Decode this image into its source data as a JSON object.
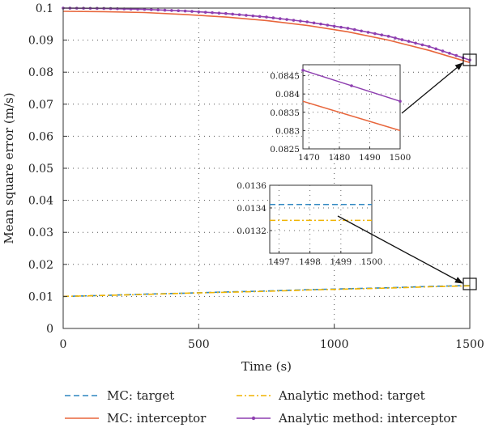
{
  "chart_data": {
    "type": "line",
    "xlabel": "Time (s)",
    "ylabel": "Mean square error (m/s)",
    "xlim": [
      0,
      1500
    ],
    "ylim": [
      0,
      0.1
    ],
    "xticks": [
      "0",
      "500",
      "1000",
      "1500"
    ],
    "yticks": [
      "0",
      "0.01",
      "0.02",
      "0.03",
      "0.04",
      "0.05",
      "0.06",
      "0.07",
      "0.08",
      "0.09",
      "0.1"
    ],
    "grid": "dotted",
    "legend_position": "bottom",
    "series": [
      {
        "name": "MC: target",
        "style": "dashed",
        "color": "#2e86c1",
        "x": [
          0,
          150,
          300,
          450,
          600,
          750,
          900,
          1050,
          1200,
          1350,
          1500
        ],
        "y": [
          0.01,
          0.0103,
          0.0107,
          0.011,
          0.0114,
          0.0117,
          0.0121,
          0.0124,
          0.0127,
          0.0131,
          0.0134
        ]
      },
      {
        "name": "MC: interceptor",
        "style": "solid",
        "color": "#e8663c",
        "x": [
          0,
          150,
          300,
          450,
          600,
          750,
          900,
          1050,
          1200,
          1350,
          1500
        ],
        "y": [
          0.099,
          0.0989,
          0.0986,
          0.098,
          0.0972,
          0.0961,
          0.0946,
          0.0926,
          0.09,
          0.0868,
          0.083
        ]
      },
      {
        "name": "Analytic method: target",
        "style": "dashdot",
        "color": "#f0b400",
        "x": [
          0,
          150,
          300,
          450,
          600,
          750,
          900,
          1050,
          1200,
          1350,
          1500
        ],
        "y": [
          0.01,
          0.0103,
          0.0106,
          0.011,
          0.0113,
          0.0116,
          0.012,
          0.0123,
          0.0126,
          0.013,
          0.0133
        ]
      },
      {
        "name": "Analytic method: interceptor",
        "style": "solid-dots",
        "color": "#8e3fb0",
        "x": [
          0,
          150,
          300,
          450,
          600,
          750,
          900,
          1050,
          1200,
          1350,
          1500
        ],
        "y": [
          0.1,
          0.0999,
          0.0996,
          0.0991,
          0.0983,
          0.0972,
          0.0957,
          0.0937,
          0.0912,
          0.088,
          0.0838
        ]
      }
    ],
    "insets": [
      {
        "xlim": [
          1468,
          1500
        ],
        "ylim": [
          0.0825,
          0.0848
        ],
        "xticks": [
          "1470",
          "1480",
          "1490",
          "1500"
        ],
        "yticks": [
          "0.0825",
          "0.083",
          "0.0835",
          "0.084",
          "0.0845"
        ],
        "series": [
          {
            "name": "MC: interceptor",
            "x": [
              1468,
              1500
            ],
            "y": [
              0.0838,
              0.083
            ]
          },
          {
            "name": "Analytic method: interceptor",
            "x": [
              1468,
              1500
            ],
            "y": [
              0.08465,
              0.0838
            ]
          }
        ]
      },
      {
        "xlim": [
          1496.7,
          1500
        ],
        "ylim": [
          0.013,
          0.0136
        ],
        "xticks": [
          "1497",
          "1498",
          "1499",
          "1500"
        ],
        "yticks": [
          "0.0132",
          "0.0134",
          "0.0136"
        ],
        "series": [
          {
            "name": "MC: target",
            "x": [
              1496.7,
              1500
            ],
            "y": [
              0.01343,
              0.01343
            ]
          },
          {
            "name": "Analytic method: target",
            "x": [
              1496.7,
              1500
            ],
            "y": [
              0.01329,
              0.01329
            ]
          }
        ]
      }
    ]
  }
}
